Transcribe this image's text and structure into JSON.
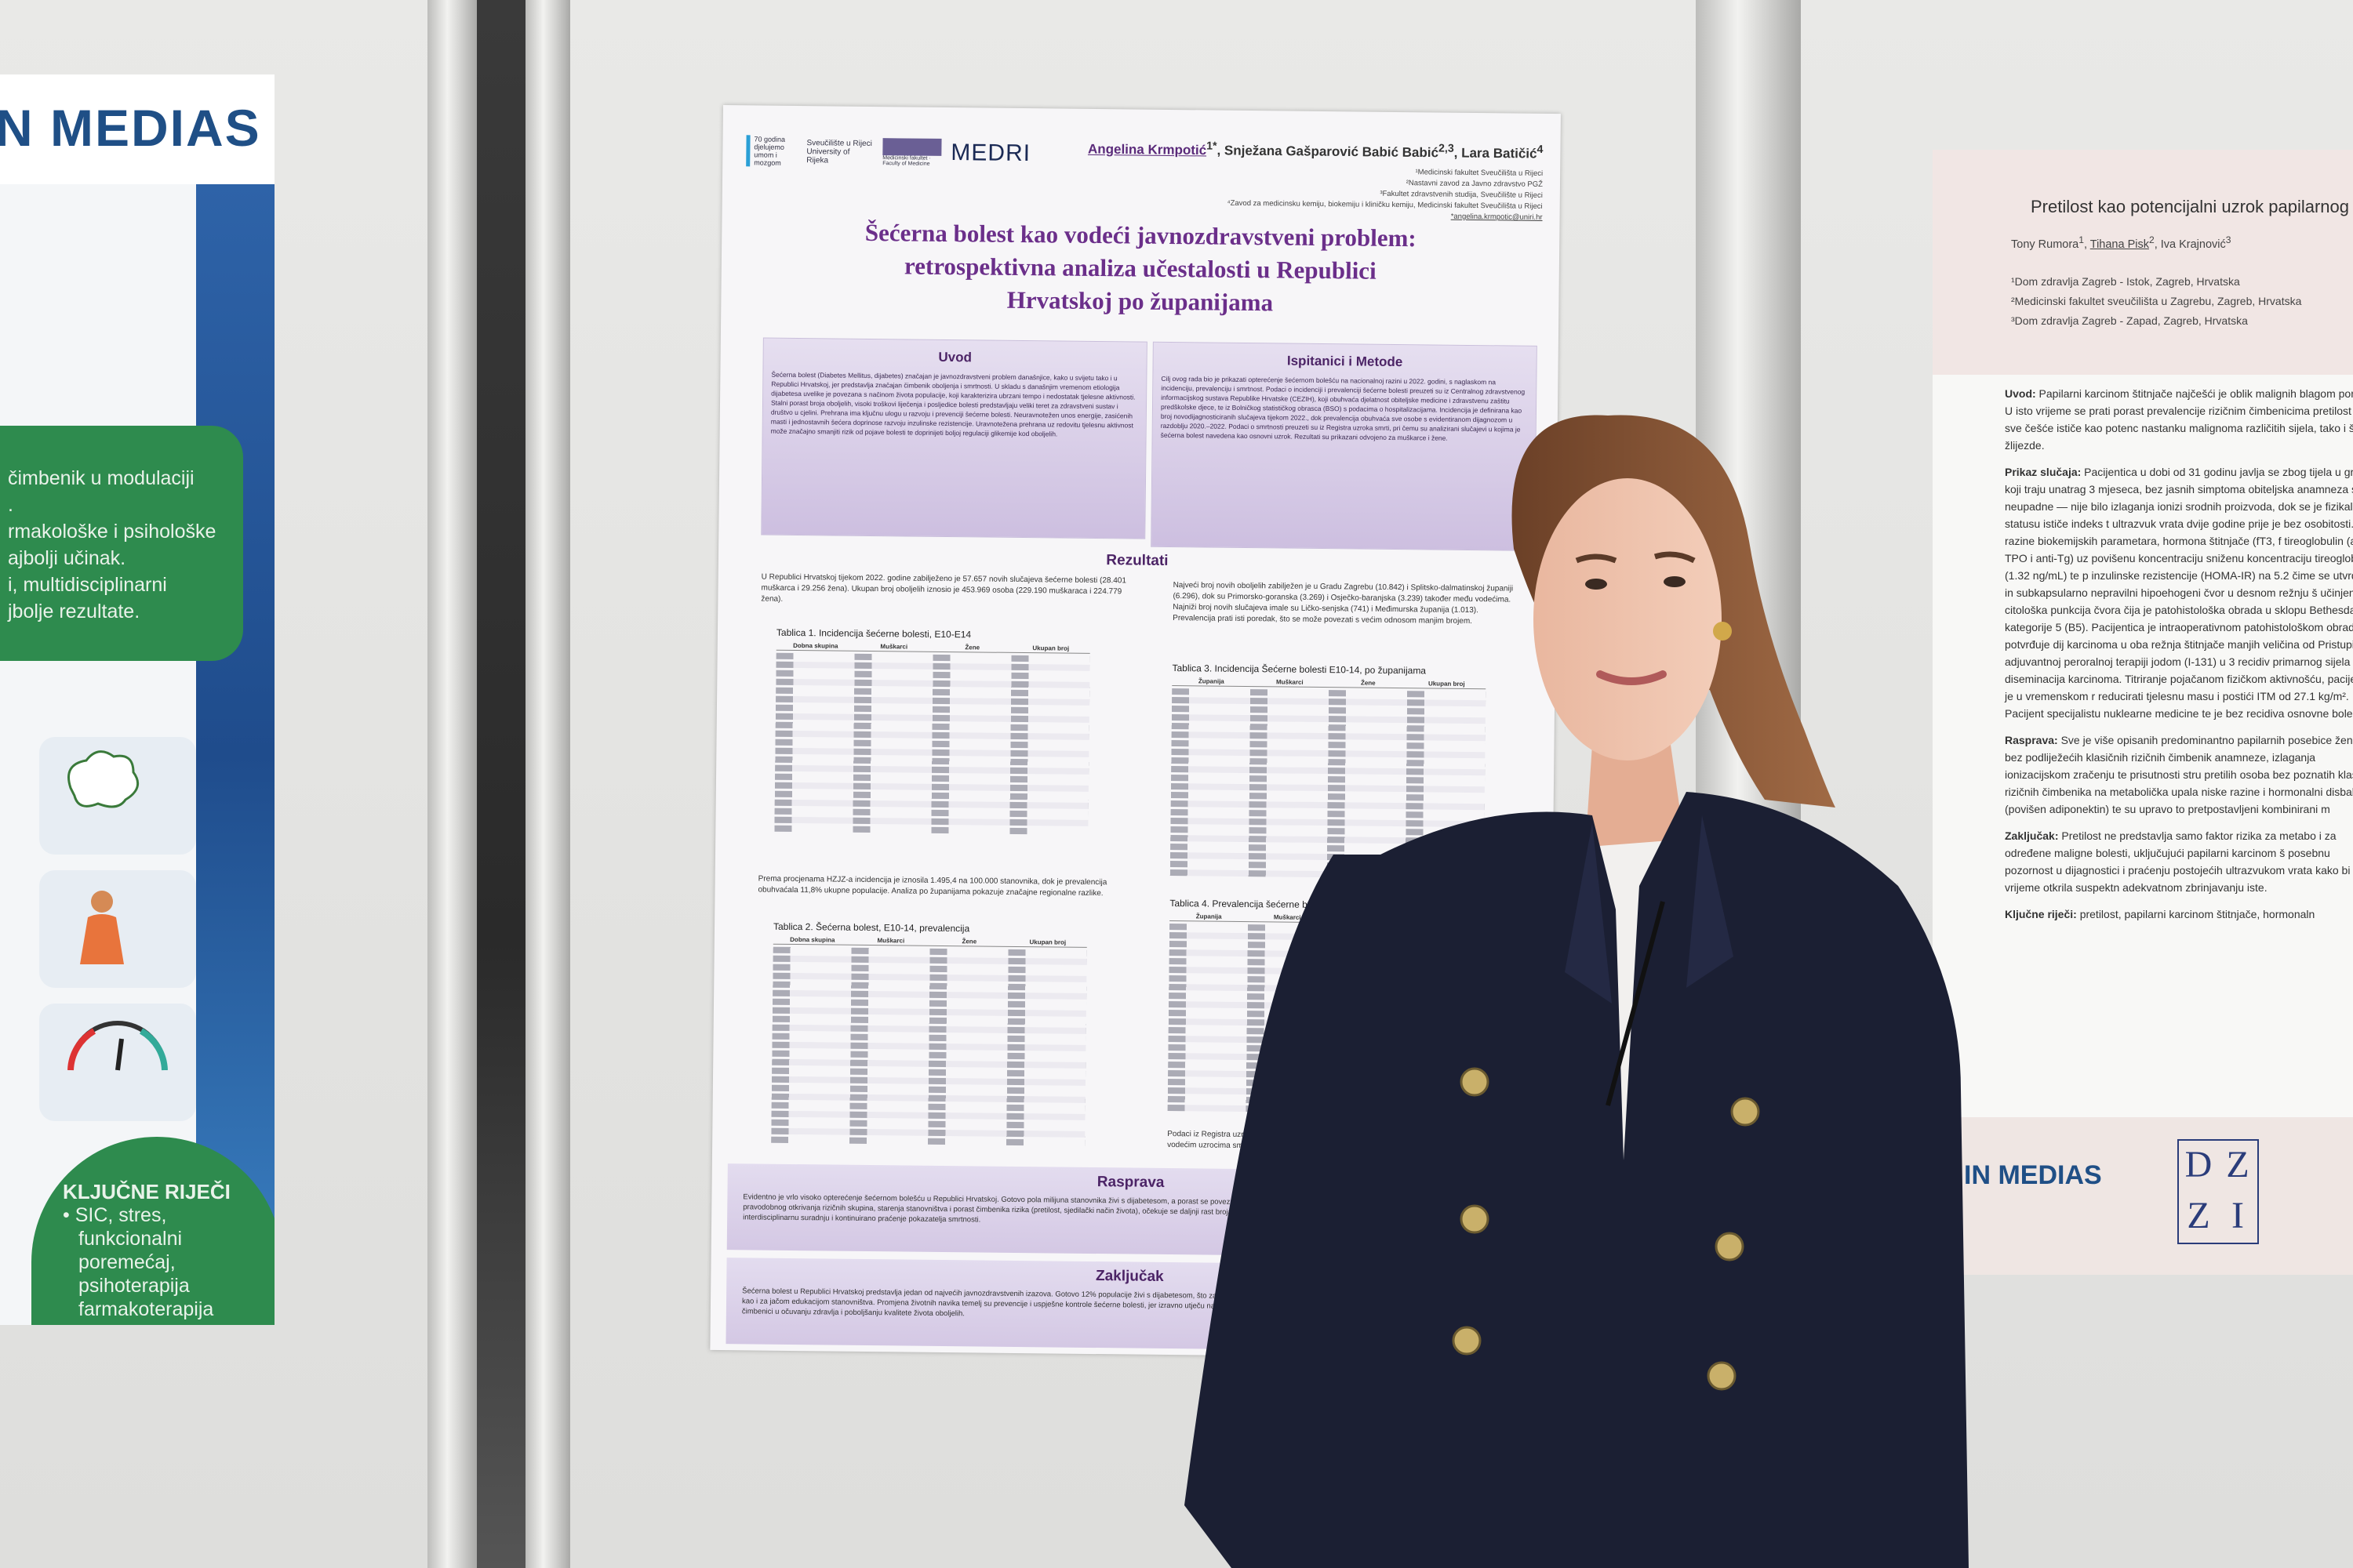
{
  "left_poster": {
    "logo_text": "N MEDIAS",
    "green_box_lines": [
      "čimbenik u modulaciji",
      ".",
      "rmakološke i psihološke",
      "ajbolji učinak.",
      "i, multidisciplinarni",
      "jbolje rezultate."
    ],
    "keywords_title": "KLJUČNE RIJEČI",
    "keywords_lines": [
      "•  SIC, stres,",
      "funkcionalni",
      "poremećaj,",
      "psihoterapija",
      "farmakoterapija"
    ]
  },
  "center_poster": {
    "logos": [
      "70 godina djelujemo umom i mozgom",
      "Sveučilište u Rijeci University of Rijeka",
      "Medicinski fakultet · Faculty of Medicine",
      "MEDRI"
    ],
    "authors": {
      "first": "Angelina Krmpotić",
      "first_sup": "1*",
      "rest": ", Snježana Gašparović Babić Babić",
      "rest_sup": "2,3",
      "last": ", Lara Batičić",
      "last_sup": "4"
    },
    "affiliations": [
      "¹Medicinski fakultet Sveučilišta u Rijeci",
      "²Nastavni zavod za Javno zdravstvo PGŽ",
      "³Fakultet zdravstvenih studija, Sveučilište u Rijeci",
      "⁴Zavod za medicinsku kemiju, biokemiju i kliničku kemiju, Medicinski fakultet Sveučilišta u Rijeci",
      "*angelina.krmpotic@uniri.hr"
    ],
    "title_lines": [
      "Šećerna bolest kao vodeći javnozdravstveni problem:",
      "retrospektivna analiza učestalosti u Republici",
      "Hrvatskoj po županijama"
    ],
    "uvod": {
      "heading": "Uvod",
      "text": "Šećerna bolest (Diabetes Mellitus, dijabetes) značajan je javnozdravstveni problem današnjice, kako u svijetu tako i u Republici Hrvatskoj, jer predstavlja značajan čimbenik oboljenja i smrtnosti. U skladu s današnjim vremenom etiologija dijabetesa uvelike je povezana s načinom života populacije, koji karakterizira ubrzani tempo i nedostatak tjelesne aktivnosti. Stalni porast broja oboljelih, visoki troškovi liječenja i posljedice bolesti predstavljaju veliki teret za zdravstveni sustav i društvo u cjelini. Prehrana ima ključnu ulogu u razvoju i prevenciji šećerne bolesti. Neuravnotežen unos energije, zasićenih masti i jednostavnih šećera doprinose razvoju inzulinske rezistencije. Uravnotežena prehrana uz redovitu tjelesnu aktivnost može značajno smanjiti rizik od pojave bolesti te doprinijeti boljoj regulaciji glikemije kod oboljelih."
    },
    "metode": {
      "heading": "Ispitanici i Metode",
      "text": "Cilj ovog rada bio je prikazati opterećenje šećernom bolešću na nacionalnoj razini u 2022. godini, s naglaskom na incidenciju, prevalenciju i smrtnost. Podaci o incidenciji i prevalenciji šećerne bolesti preuzeti su iz Centralnog zdravstvenog informacijskog sustava Republike Hrvatske (CEZIH), koji obuhvaća djelatnost obiteljske medicine i zdravstvenu zaštitu predškolske djece, te iz Bolničkog statističkog obrasca (BSO) s podacima o hospitalizacijama. Incidencija je definirana kao broj novodijagnosticiranih slučajeva tijekom 2022., dok prevalencija obuhvaća sve osobe s evidentiranom dijagnozom u razdoblju 2020.–2022. Podaci o smrtnosti preuzeti su iz Registra uzroka smrti, pri čemu su analizirani slučajevi u kojima je šećerna bolest navedena kao osnovni uzrok. Rezultati su prikazani odvojeno za muškarce i žene."
    },
    "rezultati": {
      "heading": "Rezultati",
      "para1": "U Republici Hrvatskoj tijekom 2022. godine zabilježeno je 57.657 novih slučajeva šećerne bolesti (28.401 muškarca i 29.256 žena). Ukupan broj oboljelih iznosio je 453.969 osoba (229.190 muškaraca i 224.779 žena).",
      "para2": "Prema procjenama HZJZ-a incidencija je iznosila 1.495,4 na 100.000 stanovnika, dok je prevalencija obuhvaćala 11,8% ukupne populacije. Analiza po županijama pokazuje značajne regionalne razlike.",
      "para3": "Najveći broj novih oboljelih zabilježen je u Gradu Zagrebu (10.842) i Splitsko-dalmatinskoj županiji (6.296), dok su Primorsko-goranska (3.269) i Osječko-baranjska (3.239) također među vodećima. Najniži broj novih slučajeva imale su Ličko-senjska (741) i Međimurska županija (1.013). Prevalencija prati isti poredak, što se može povezati s većim odnosom manjim brojem.",
      "para4": "Podaci iz Registra uzroka smrti pokazuju da šećerna bolest zauzima značajno mjesto među vodećim uzrocima smrti, naglašavajući njezin značaj.",
      "table1_caption": "Tablica 1. Incidencija šećerne bolesti, E10-E14",
      "table2_caption": "Tablica 2. Šećerna bolest, E10-14, prevalencija",
      "table3_caption": "Tablica 3. Incidencija Šećerne bolesti E10-14, po županijama",
      "table4_caption": "Tablica 4. Prevalencija šećerne bolesti",
      "table_headers": [
        "Dobna skupina",
        "Muškarci",
        "Žene",
        "Ukupan broj"
      ],
      "county_headers": [
        "Županija",
        "Muškarci",
        "Žene",
        "Ukupan broj"
      ]
    },
    "rasprava": {
      "heading": "Rasprava",
      "text": "Evidentno je vrlo visoko opterećenje šećernom bolešću u Republici Hrvatskoj. Gotovo pola milijuna stanovnika živi s dijabetesom, a porast se povezuje s promjenama prehrane (mediteranska prehrana), povećane tjelesne neaktivnosti i pravodobnog otkrivanja rizičnih skupina, starenja stanovništva i porast čimbenika rizika (pretilost, sjedilački način života), očekuje se daljnji rast broja oboljelih. To naglašava potrebu za prevencijom i kontrolom šećerne bolesti, uključujući interdisciplinarnu suradnju i kontinuirano praćenje pokazatelja smrtnosti."
    },
    "zakljucak": {
      "heading": "Zaključak",
      "text": "Šećerna bolest u Republici Hrvatskoj predstavlja jedan od najvećih javnozdravstvenih izazova. Gotovo 12% populacije živi s dijabetesom, što zahtijeva provedbom preventivnih programa, ranom dijagnostikom i adekvatnim liječenjem, kao i za jačom edukacijom stanovništva. Promjena životnih navika temelj su prevencije i uspješne kontrole šećerne bolesti, jer izravno utječu na regulaciju glikemije. Prehrambenim izborima i njihova dugoročna primjena ključni su čimbenici u očuvanju zdravlja i poboljšanju kvalitete života oboljelih."
    },
    "accent_color": "#6b2f8a"
  },
  "right_poster": {
    "title": "Pretilost kao potencijalni uzrok papilarnog k",
    "authors": [
      "Tony Rumora",
      "1",
      "Tihana Pisk",
      "2",
      "Iva Krajnović",
      "3"
    ],
    "affiliations": [
      "¹Dom zdravlja Zagreb - Istok, Zagreb, Hrvatska",
      "²Medicinski fakultet sveučilišta u Zagrebu, Zagreb, Hrvatska",
      "³Dom zdravlja Zagreb - Zapad, Zagreb, Hrvatska"
    ],
    "paragraphs": [
      {
        "label": "Uvod:",
        "text": " Papilarni karcinom štitnjače najčešći je oblik malignih blagom porastu. U isto vrijeme se prati porast prevalencije rizičnim čimbenicima pretilost se sve češće ističe kao potenc nastanku malignoma različitih sijela, tako i štitne žlijezde."
      },
      {
        "label": "Prikaz slučaja:",
        "text": " Pacijentica u dobi od 31 godinu javlja se zbog tijela u grlu koji traju unatrag 3 mjeseca, bez jasnih simptoma obiteljska anamneza su neupadne — nije bilo izlaganja ionizi srodnih proizvoda, dok se je fizikalnom statusu ističe indeks t ultrazvuk vrata dvije godine prije je bez osobitosti. Lab razine biokemijskih parametara, hormona štitnjače (fT3, f tireoglobulin (anti-TPO i anti-Tg) uz povišenu koncentraciju sniženu koncentraciju tireoglobulina (1.32 ng/mL) te p inzulinske rezistencije (HOMA-IR) na 5.2 čime se utvrđuje in subkapsularno nepravilni hipoehogeni čvor u desnom režnju š učinjena citološka punkcija čvora čija je patohistološka obrada u sklopu Bethesda kategorije 5 (B5). Pacijentica je intraoperativnom patohistološkom obradom potvrđuje dij karcinoma u oba režnja štitnjače manjih veličina od Pristupilo se adjuvantnoj peroralnoj terapiji jodom (I-131) u 3 recidiv primarnog sijela i diseminacija karcinoma. Titriranje pojačanom fizičkom aktivnošću, pacijentica je u vremenskom r reducirati tjelesnu masu i postići ITM od 27.1 kg/m². Pacijent specijalistu nuklearne medicine te je bez recidiva osnovne bole"
      },
      {
        "label": "Rasprava:",
        "text": " Sve je više opisanih predominantno papilarnih posebice žena, bez podliježećih klasičnih rizičnih čimbenik anamneze, izlaganja ionizacijskom zračenju te prisutnosti stru pretilih osoba bez poznatih klasičnih rizičnih čimbenika na metabolička upala niske razine i hormonalni disbalans (povišen adiponektin) te su upravo to pretpostavljeni kombinirani m"
      },
      {
        "label": "Zaključak:",
        "text": " Pretilost ne predstavlja samo faktor rizika za metabo i za određene maligne bolesti, uključujući papilarni karcinom š posebnu pozornost u dijagnostici i praćenju postojećih ultrazvukom vrata kako bi se na vrijeme otkrila suspektn adekvatnom zbrinjavanju iste."
      },
      {
        "label": "Ključne riječi:",
        "text": " pretilost, papilarni karcinom štitnjače, hormonaln"
      }
    ],
    "footer_logo": "IN MEDIAS",
    "footer_logo2_letters": [
      "D",
      "Z",
      "Z",
      "I"
    ]
  }
}
